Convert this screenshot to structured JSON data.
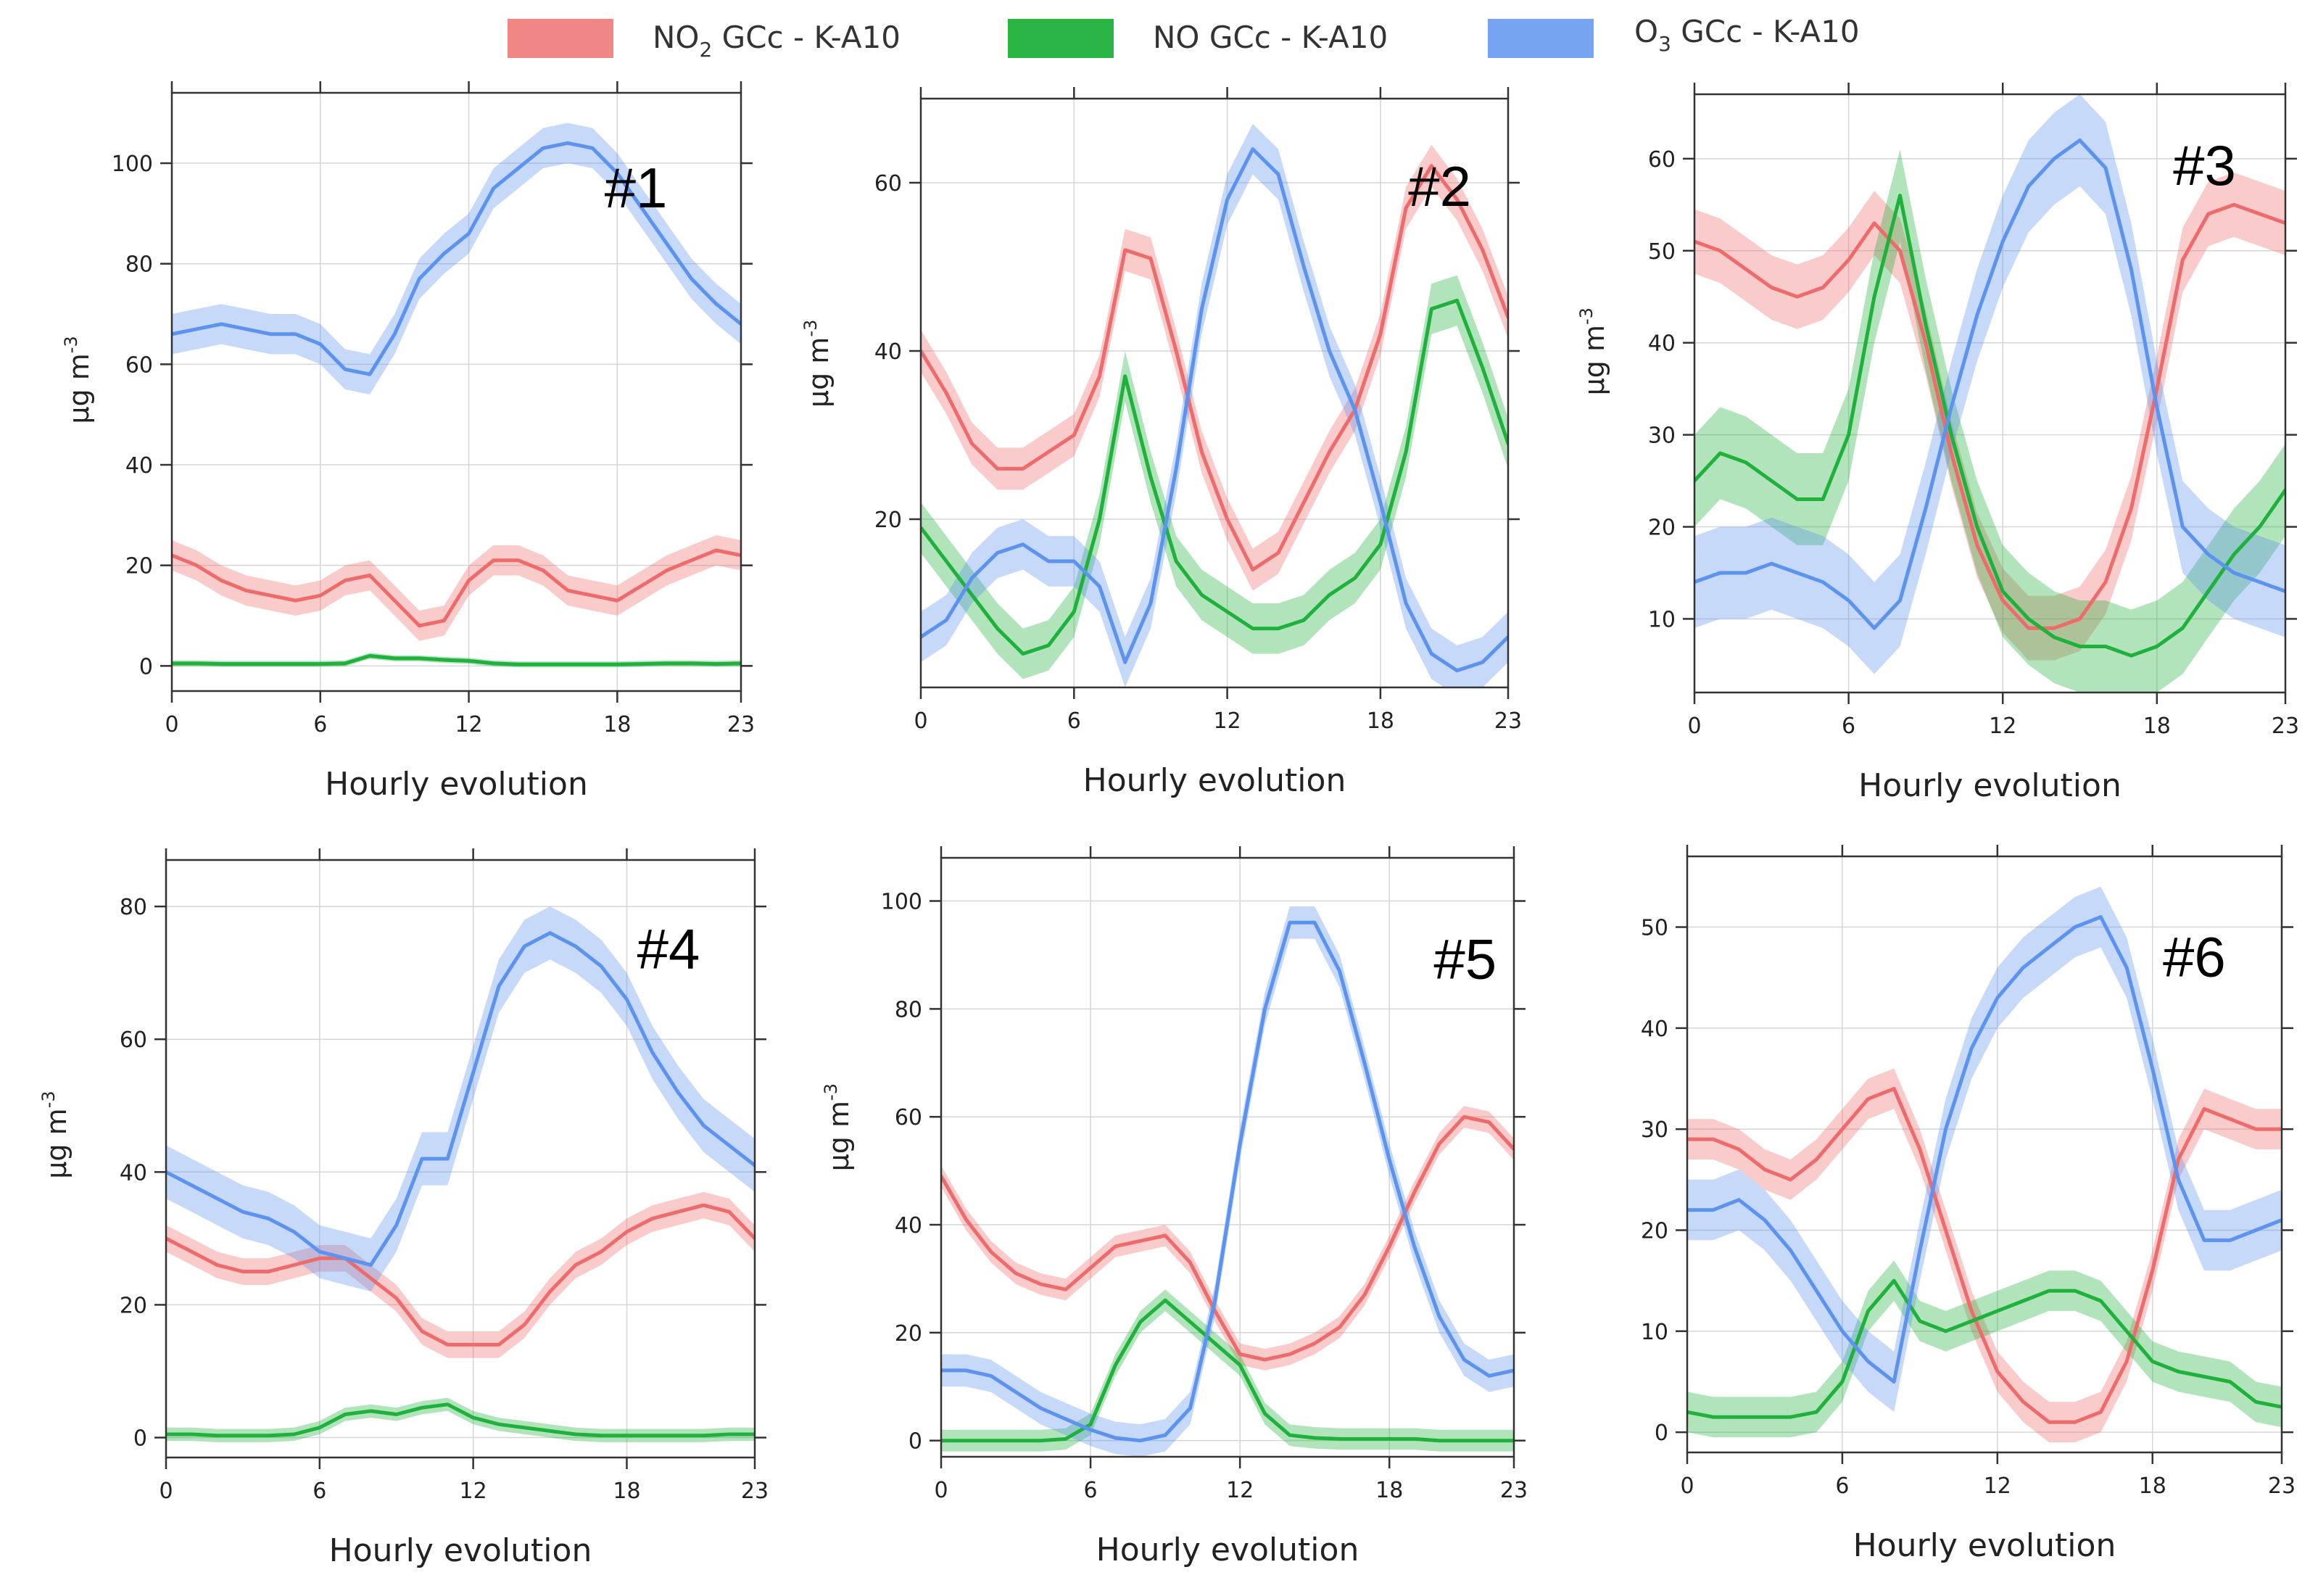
{
  "legend": {
    "no2": {
      "label": "NO",
      "sub": "2",
      "suffix": " GCc - K-A10",
      "color": "#ee6b6b"
    },
    "no": {
      "label": "NO GCc - K-A10",
      "color": "#1fb13b"
    },
    "o3": {
      "label": "O",
      "sub": "3",
      "suffix": " GCc - K-A10",
      "color": "#5b93ef"
    }
  },
  "chart_data": [
    {
      "type": "line",
      "panel": "#1",
      "xlabel": "Hourly evolution",
      "ylabel": "µg m",
      "ylabel_sup": "-3",
      "x": [
        0,
        1,
        2,
        3,
        4,
        5,
        6,
        7,
        8,
        9,
        10,
        11,
        12,
        13,
        14,
        15,
        16,
        17,
        18,
        19,
        20,
        21,
        22,
        23
      ],
      "xlim": [
        0,
        23
      ],
      "xticks": [
        0,
        6,
        12,
        18,
        23
      ],
      "ylim": [
        -5,
        114
      ],
      "yticks": [
        0,
        20,
        40,
        60,
        80,
        100
      ],
      "series": [
        {
          "name": "NO2 GCc - K-A10",
          "color": "#ee6b6b",
          "band": 3,
          "values": [
            22,
            20,
            17,
            15,
            14,
            13,
            14,
            17,
            18,
            13,
            8,
            9,
            17,
            21,
            21,
            19,
            15,
            14,
            13,
            16,
            19,
            21,
            23,
            22
          ]
        },
        {
          "name": "NO GCc - K-A10",
          "color": "#1fb13b",
          "band": 0.6,
          "values": [
            0.5,
            0.5,
            0.4,
            0.4,
            0.4,
            0.4,
            0.4,
            0.5,
            2,
            1.5,
            1.5,
            1.2,
            1,
            0.5,
            0.3,
            0.3,
            0.3,
            0.3,
            0.3,
            0.4,
            0.5,
            0.5,
            0.4,
            0.5
          ]
        },
        {
          "name": "O3 GCc - K-A10",
          "color": "#5b93ef",
          "band": 4,
          "values": [
            66,
            67,
            68,
            67,
            66,
            66,
            64,
            59,
            58,
            66,
            77,
            82,
            86,
            95,
            99,
            103,
            104,
            103,
            98,
            91,
            84,
            77,
            72,
            68
          ]
        }
      ]
    },
    {
      "type": "line",
      "panel": "#2",
      "xlabel": "Hourly evolution",
      "ylabel": "µg m",
      "ylabel_sup": "-3",
      "x": [
        0,
        1,
        2,
        3,
        4,
        5,
        6,
        7,
        8,
        9,
        10,
        11,
        12,
        13,
        14,
        15,
        16,
        17,
        18,
        19,
        20,
        21,
        22,
        23
      ],
      "xlim": [
        0,
        23
      ],
      "xticks": [
        0,
        6,
        12,
        18,
        23
      ],
      "ylim": [
        0,
        70
      ],
      "yticks": [
        20,
        40,
        60
      ],
      "series": [
        {
          "name": "NO2 GCc - K-A10",
          "color": "#ee6b6b",
          "band": 2.5,
          "values": [
            40,
            35,
            29,
            26,
            26,
            28,
            30,
            37,
            52,
            51,
            40,
            28,
            20,
            14,
            16,
            22,
            28,
            33,
            42,
            57,
            62,
            58,
            52,
            44
          ]
        },
        {
          "name": "NO GCc - K-A10",
          "color": "#1fb13b",
          "band": 3,
          "values": [
            19,
            15,
            11,
            7,
            4,
            5,
            9,
            20,
            37,
            25,
            15,
            11,
            9,
            7,
            7,
            8,
            11,
            13,
            17,
            28,
            45,
            46,
            38,
            29
          ]
        },
        {
          "name": "O3 GCc - K-A10",
          "color": "#5b93ef",
          "band": 3,
          "values": [
            6,
            8,
            13,
            16,
            17,
            15,
            15,
            12,
            3,
            10,
            26,
            45,
            58,
            64,
            61,
            50,
            40,
            33,
            22,
            10,
            4,
            2,
            3,
            6
          ]
        }
      ]
    },
    {
      "type": "line",
      "panel": "#3",
      "xlabel": "Hourly evolution",
      "ylabel": "µg m",
      "ylabel_sup": "-3",
      "x": [
        0,
        1,
        2,
        3,
        4,
        5,
        6,
        7,
        8,
        9,
        10,
        11,
        12,
        13,
        14,
        15,
        16,
        17,
        18,
        19,
        20,
        21,
        22,
        23
      ],
      "xlim": [
        0,
        23
      ],
      "xticks": [
        0,
        6,
        12,
        18,
        23
      ],
      "ylim": [
        2,
        67
      ],
      "yticks": [
        10,
        20,
        30,
        40,
        50,
        60
      ],
      "series": [
        {
          "name": "NO2 GCc - K-A10",
          "color": "#ee6b6b",
          "band": 3.5,
          "values": [
            51,
            50,
            48,
            46,
            45,
            46,
            49,
            53,
            50,
            40,
            28,
            18,
            12,
            9,
            9,
            10,
            14,
            22,
            35,
            49,
            54,
            55,
            54,
            53
          ]
        },
        {
          "name": "NO GCc - K-A10",
          "color": "#1fb13b",
          "band": 5,
          "values": [
            25,
            28,
            27,
            25,
            23,
            23,
            30,
            45,
            56,
            42,
            30,
            20,
            13,
            10,
            8,
            7,
            7,
            6,
            7,
            9,
            13,
            17,
            20,
            24
          ]
        },
        {
          "name": "O3 GCc - K-A10",
          "color": "#5b93ef",
          "band": 5,
          "values": [
            14,
            15,
            15,
            16,
            15,
            14,
            12,
            9,
            12,
            22,
            33,
            43,
            51,
            57,
            60,
            62,
            59,
            48,
            33,
            20,
            17,
            15,
            14,
            13
          ]
        }
      ]
    },
    {
      "type": "line",
      "panel": "#4",
      "xlabel": "Hourly evolution",
      "ylabel": "µg m",
      "ylabel_sup": "-3",
      "x": [
        0,
        1,
        2,
        3,
        4,
        5,
        6,
        7,
        8,
        9,
        10,
        11,
        12,
        13,
        14,
        15,
        16,
        17,
        18,
        19,
        20,
        21,
        22,
        23
      ],
      "xlim": [
        0,
        23
      ],
      "xticks": [
        0,
        6,
        12,
        18,
        23
      ],
      "ylim": [
        -3,
        87
      ],
      "yticks": [
        0,
        20,
        40,
        60,
        80
      ],
      "series": [
        {
          "name": "NO2 GCc - K-A10",
          "color": "#ee6b6b",
          "band": 2,
          "values": [
            30,
            28,
            26,
            25,
            25,
            26,
            27,
            27,
            24,
            21,
            16,
            14,
            14,
            14,
            17,
            22,
            26,
            28,
            31,
            33,
            34,
            35,
            34,
            30
          ]
        },
        {
          "name": "NO GCc - K-A10",
          "color": "#1fb13b",
          "band": 1,
          "values": [
            0.5,
            0.5,
            0.3,
            0.3,
            0.3,
            0.5,
            1.5,
            3.5,
            4,
            3.5,
            4.5,
            5,
            3,
            2,
            1.5,
            1,
            0.5,
            0.3,
            0.3,
            0.3,
            0.3,
            0.3,
            0.5,
            0.5
          ]
        },
        {
          "name": "O3 GCc - K-A10",
          "color": "#5b93ef",
          "band": 4,
          "values": [
            40,
            38,
            36,
            34,
            33,
            31,
            28,
            27,
            26,
            32,
            42,
            42,
            55,
            68,
            74,
            76,
            74,
            71,
            66,
            58,
            52,
            47,
            44,
            41
          ]
        }
      ]
    },
    {
      "type": "line",
      "panel": "#5",
      "xlabel": "Hourly evolution",
      "ylabel": "µg m",
      "ylabel_sup": "-3",
      "x": [
        0,
        1,
        2,
        3,
        4,
        5,
        6,
        7,
        8,
        9,
        10,
        11,
        12,
        13,
        14,
        15,
        16,
        17,
        18,
        19,
        20,
        21,
        22,
        23
      ],
      "xlim": [
        0,
        23
      ],
      "xticks": [
        0,
        6,
        12,
        18,
        23
      ],
      "ylim": [
        -3,
        108
      ],
      "yticks": [
        0,
        20,
        40,
        60,
        80,
        100
      ],
      "series": [
        {
          "name": "NO2 GCc - K-A10",
          "color": "#ee6b6b",
          "band": 2,
          "values": [
            49,
            41,
            35,
            31,
            29,
            28,
            32,
            36,
            37,
            38,
            33,
            24,
            16,
            15,
            16,
            18,
            21,
            27,
            36,
            46,
            55,
            60,
            59,
            54
          ]
        },
        {
          "name": "NO GCc - K-A10",
          "color": "#1fb13b",
          "band": 2,
          "values": [
            0,
            0,
            0,
            0,
            0,
            0.3,
            3,
            14,
            22,
            26,
            22,
            18,
            14,
            5,
            1,
            0.5,
            0.3,
            0.3,
            0.3,
            0.3,
            0,
            0,
            0,
            0
          ]
        },
        {
          "name": "O3 GCc - K-A10",
          "color": "#5b93ef",
          "band": 3,
          "values": [
            13,
            13,
            12,
            9,
            6,
            4,
            2,
            0.5,
            0,
            1,
            6,
            26,
            55,
            80,
            96,
            96,
            87,
            70,
            52,
            36,
            23,
            15,
            12,
            13
          ]
        }
      ]
    },
    {
      "type": "line",
      "panel": "#6",
      "xlabel": "Hourly evolution",
      "ylabel": "",
      "ylabel_sup": "",
      "x": [
        0,
        1,
        2,
        3,
        4,
        5,
        6,
        7,
        8,
        9,
        10,
        11,
        12,
        13,
        14,
        15,
        16,
        17,
        18,
        19,
        20,
        21,
        22,
        23
      ],
      "xlim": [
        0,
        23
      ],
      "xticks": [
        0,
        6,
        12,
        18,
        23
      ],
      "ylim": [
        -2,
        57
      ],
      "yticks": [
        0,
        10,
        20,
        30,
        40,
        50
      ],
      "series": [
        {
          "name": "NO2 GCc - K-A10",
          "color": "#ee6b6b",
          "band": 2,
          "values": [
            29,
            29,
            28,
            26,
            25,
            27,
            30,
            33,
            34,
            28,
            20,
            12,
            6,
            3,
            1,
            1,
            2,
            7,
            16,
            27,
            32,
            31,
            30,
            30
          ]
        },
        {
          "name": "NO GCc - K-A10",
          "color": "#1fb13b",
          "band": 2,
          "values": [
            2,
            1.5,
            1.5,
            1.5,
            1.5,
            2,
            5,
            12,
            15,
            11,
            10,
            11,
            12,
            13,
            14,
            14,
            13,
            10,
            7,
            6,
            5.5,
            5,
            3,
            2.5
          ]
        },
        {
          "name": "O3 GCc - K-A10",
          "color": "#5b93ef",
          "band": 3,
          "values": [
            22,
            22,
            23,
            21,
            18,
            14,
            10,
            7,
            5,
            18,
            30,
            38,
            43,
            46,
            48,
            50,
            51,
            46,
            36,
            25,
            19,
            19,
            20,
            21
          ]
        }
      ]
    }
  ]
}
